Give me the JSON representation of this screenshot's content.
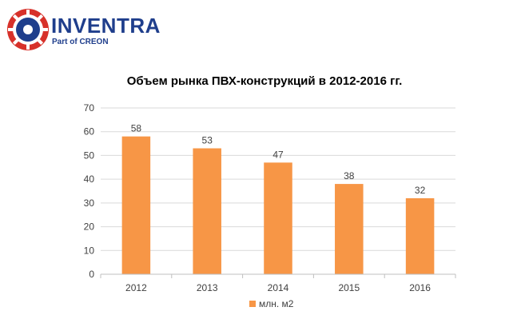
{
  "logo": {
    "name": "INVENTRA",
    "tagline": "Part of CREON",
    "colors": {
      "red": "#d7312a",
      "blue": "#1f3e8c"
    }
  },
  "chart_data": {
    "type": "bar",
    "title": "Объем рынка ПВХ-конструкций в 2012-2016 гг.",
    "categories": [
      "2012",
      "2013",
      "2014",
      "2015",
      "2016"
    ],
    "series": [
      {
        "name": "млн. м2",
        "values": [
          58,
          53,
          47,
          38,
          32
        ],
        "color": "#f79646"
      }
    ],
    "ylim": [
      0,
      70
    ],
    "yticks": [
      0,
      10,
      20,
      30,
      40,
      50,
      60,
      70
    ],
    "xlabel": "",
    "ylabel": "",
    "grid": true,
    "legend": "bottom",
    "data_labels": true
  }
}
